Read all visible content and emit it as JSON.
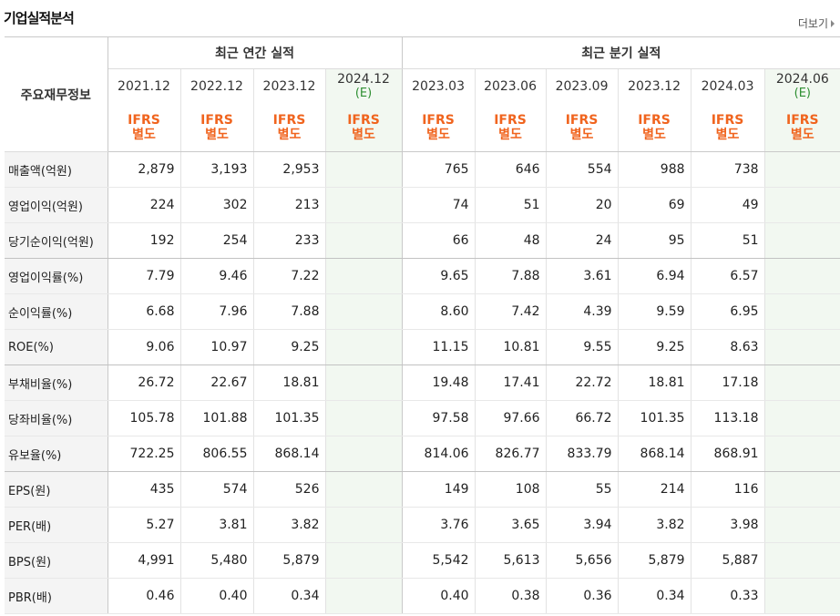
{
  "header": {
    "title": "기업실적분석",
    "more_label": "더보기"
  },
  "table": {
    "label_header": "주요재무정보",
    "group_annual": "최근 연간 실적",
    "group_quarterly": "최근 분기 실적",
    "annual_periods": [
      {
        "date": "2021.12",
        "est": ""
      },
      {
        "date": "2022.12",
        "est": ""
      },
      {
        "date": "2023.12",
        "est": ""
      },
      {
        "date": "2024.12",
        "est": "(E)"
      }
    ],
    "quarter_periods": [
      {
        "date": "2023.03",
        "est": ""
      },
      {
        "date": "2023.06",
        "est": ""
      },
      {
        "date": "2023.09",
        "est": ""
      },
      {
        "date": "2023.12",
        "est": ""
      },
      {
        "date": "2024.03",
        "est": ""
      },
      {
        "date": "2024.06",
        "est": "(E)"
      }
    ],
    "ifrs_line1": "IFRS",
    "ifrs_line2": "별도",
    "rows": [
      {
        "label": "매출액(억원)",
        "annual": [
          "2,879",
          "3,193",
          "2,953",
          ""
        ],
        "quarterly": [
          "765",
          "646",
          "554",
          "988",
          "738",
          ""
        ]
      },
      {
        "label": "영업이익(억원)",
        "annual": [
          "224",
          "302",
          "213",
          ""
        ],
        "quarterly": [
          "74",
          "51",
          "20",
          "69",
          "49",
          ""
        ]
      },
      {
        "label": "당기순이익(억원)",
        "annual": [
          "192",
          "254",
          "233",
          ""
        ],
        "quarterly": [
          "66",
          "48",
          "24",
          "95",
          "51",
          ""
        ]
      },
      {
        "label": "영업이익률(%)",
        "annual": [
          "7.79",
          "9.46",
          "7.22",
          ""
        ],
        "quarterly": [
          "9.65",
          "7.88",
          "3.61",
          "6.94",
          "6.57",
          ""
        ]
      },
      {
        "label": "순이익률(%)",
        "annual": [
          "6.68",
          "7.96",
          "7.88",
          ""
        ],
        "quarterly": [
          "8.60",
          "7.42",
          "4.39",
          "9.59",
          "6.95",
          ""
        ]
      },
      {
        "label": "ROE(%)",
        "annual": [
          "9.06",
          "10.97",
          "9.25",
          ""
        ],
        "quarterly": [
          "11.15",
          "10.81",
          "9.55",
          "9.25",
          "8.63",
          ""
        ]
      },
      {
        "label": "부채비율(%)",
        "annual": [
          "26.72",
          "22.67",
          "18.81",
          ""
        ],
        "quarterly": [
          "19.48",
          "17.41",
          "22.72",
          "18.81",
          "17.18",
          ""
        ]
      },
      {
        "label": "당좌비율(%)",
        "annual": [
          "105.78",
          "101.88",
          "101.35",
          ""
        ],
        "quarterly": [
          "97.58",
          "97.66",
          "66.72",
          "101.35",
          "113.18",
          ""
        ]
      },
      {
        "label": "유보율(%)",
        "annual": [
          "722.25",
          "806.55",
          "868.14",
          ""
        ],
        "quarterly": [
          "814.06",
          "826.77",
          "833.79",
          "868.14",
          "868.91",
          ""
        ]
      },
      {
        "label": "EPS(원)",
        "annual": [
          "435",
          "574",
          "526",
          ""
        ],
        "quarterly": [
          "149",
          "108",
          "55",
          "214",
          "116",
          ""
        ]
      },
      {
        "label": "PER(배)",
        "annual": [
          "5.27",
          "3.81",
          "3.82",
          ""
        ],
        "quarterly": [
          "3.76",
          "3.65",
          "3.94",
          "3.82",
          "3.98",
          ""
        ]
      },
      {
        "label": "BPS(원)",
        "annual": [
          "4,991",
          "5,480",
          "5,879",
          ""
        ],
        "quarterly": [
          "5,542",
          "5,613",
          "5,656",
          "5,879",
          "5,887",
          ""
        ]
      },
      {
        "label": "PBR(배)",
        "annual": [
          "0.46",
          "0.40",
          "0.34",
          ""
        ],
        "quarterly": [
          "0.40",
          "0.38",
          "0.36",
          "0.34",
          "0.33",
          ""
        ]
      }
    ]
  }
}
